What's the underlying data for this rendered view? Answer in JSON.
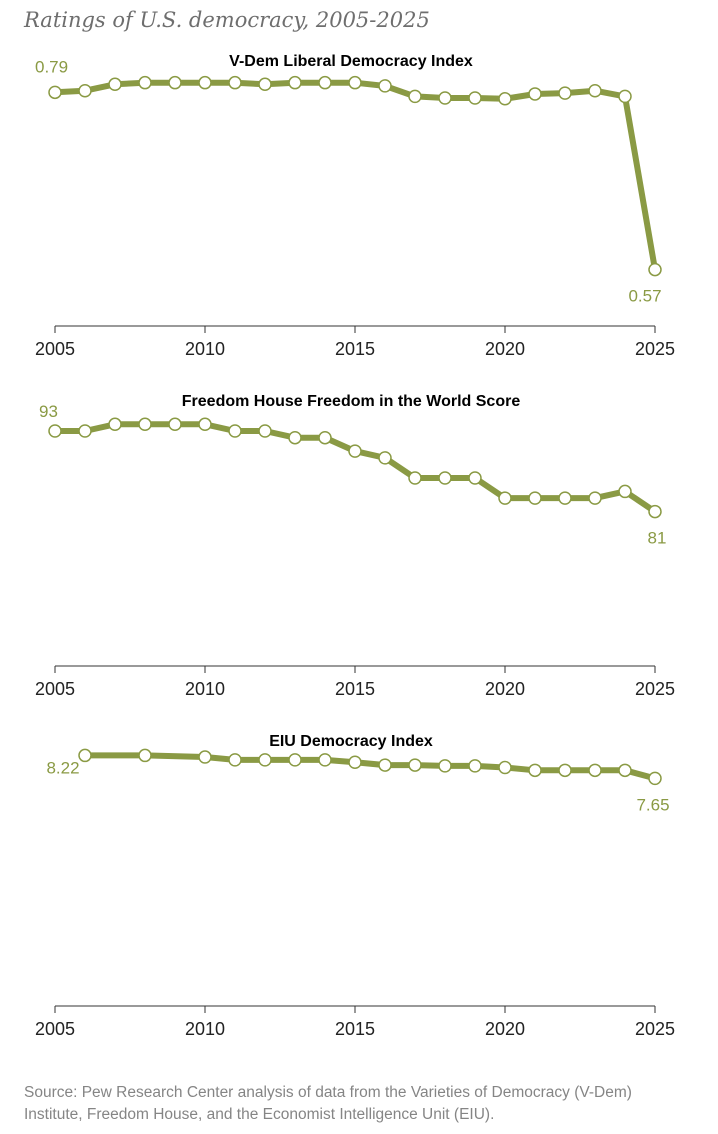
{
  "title": "Ratings of U.S. democracy, 2005-2025",
  "source": "Source: Pew Research Center analysis of data from the Varieties of Democracy (V-Dem) Institute, Freedom House, and the Economist Intelligence Unit (EIU).",
  "colors": {
    "line": "#8a9a44",
    "marker_fill": "#ffffff"
  },
  "chart_data": [
    {
      "type": "line",
      "title": "V-Dem Liberal Democracy Index",
      "x": [
        2005,
        2006,
        2007,
        2008,
        2009,
        2010,
        2011,
        2012,
        2013,
        2014,
        2015,
        2016,
        2017,
        2018,
        2019,
        2020,
        2021,
        2022,
        2023,
        2024,
        2025
      ],
      "values": [
        0.79,
        0.792,
        0.8,
        0.802,
        0.802,
        0.802,
        0.802,
        0.8,
        0.802,
        0.802,
        0.802,
        0.798,
        0.785,
        0.783,
        0.783,
        0.782,
        0.788,
        0.789,
        0.792,
        0.785,
        0.57
      ],
      "xlim": [
        2005,
        2025
      ],
      "ylim": [
        0.5,
        0.85
      ],
      "xticks": [
        "2005",
        "2010",
        "2015",
        "2020",
        "2025"
      ],
      "labels": {
        "start": "0.79",
        "end": "0.57"
      }
    },
    {
      "type": "line",
      "title": "Freedom House Freedom in the World Score",
      "x": [
        2005,
        2006,
        2007,
        2008,
        2009,
        2010,
        2011,
        2012,
        2013,
        2014,
        2015,
        2016,
        2017,
        2018,
        2019,
        2020,
        2021,
        2022,
        2023,
        2024,
        2025
      ],
      "values": [
        93,
        93,
        94,
        94,
        94,
        94,
        93,
        93,
        92,
        92,
        90,
        89,
        86,
        86,
        86,
        83,
        83,
        83,
        83,
        84,
        81
      ],
      "xlim": [
        2005,
        2025
      ],
      "ylim": [
        58,
        100
      ],
      "xticks": [
        "2005",
        "2010",
        "2015",
        "2020",
        "2025"
      ],
      "labels": {
        "start": "93",
        "end": "81"
      }
    },
    {
      "type": "line",
      "title": "EIU Democracy Index",
      "x": [
        2006,
        2008,
        2010,
        2011,
        2012,
        2013,
        2014,
        2015,
        2016,
        2017,
        2018,
        2019,
        2020,
        2021,
        2022,
        2023,
        2024,
        2025
      ],
      "values": [
        8.22,
        8.22,
        8.18,
        8.11,
        8.11,
        8.11,
        8.11,
        8.05,
        7.98,
        7.98,
        7.96,
        7.96,
        7.92,
        7.85,
        7.85,
        7.85,
        7.85,
        7.65
      ],
      "xlim": [
        2005,
        2025
      ],
      "ylim": [
        2,
        9
      ],
      "xticks": [
        "2005",
        "2010",
        "2015",
        "2020",
        "2025"
      ],
      "labels": {
        "start": "8.22",
        "end": "7.65"
      }
    }
  ]
}
